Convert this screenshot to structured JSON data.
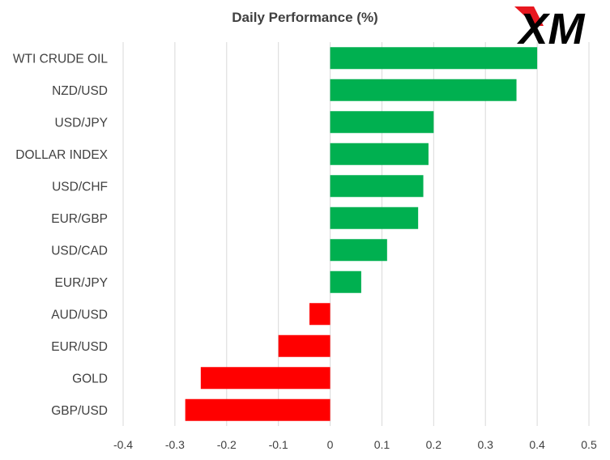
{
  "chart_data": {
    "type": "bar",
    "orientation": "horizontal",
    "title": "Daily Performance (%)",
    "categories": [
      "WTI CRUDE OIL",
      "NZD/USD",
      "USD/JPY",
      "DOLLAR INDEX",
      "USD/CHF",
      "EUR/GBP",
      "USD/CAD",
      "EUR/JPY",
      "AUD/USD",
      "EUR/USD",
      "GOLD",
      "GBP/USD"
    ],
    "values": [
      0.4,
      0.36,
      0.2,
      0.19,
      0.18,
      0.17,
      0.11,
      0.06,
      -0.04,
      -0.1,
      -0.25,
      -0.28
    ],
    "xlim": [
      -0.4,
      0.5
    ],
    "xticks": [
      "-0.4",
      "-0.3",
      "-0.2",
      "-0.1",
      "0",
      "0.1",
      "0.2",
      "0.3",
      "0.4",
      "0.5"
    ],
    "grid": true,
    "positive_color": "#00B050",
    "negative_color": "#FF0000"
  },
  "logo": {
    "text": "XM",
    "color": "#000000",
    "accent": "#E8171F"
  }
}
